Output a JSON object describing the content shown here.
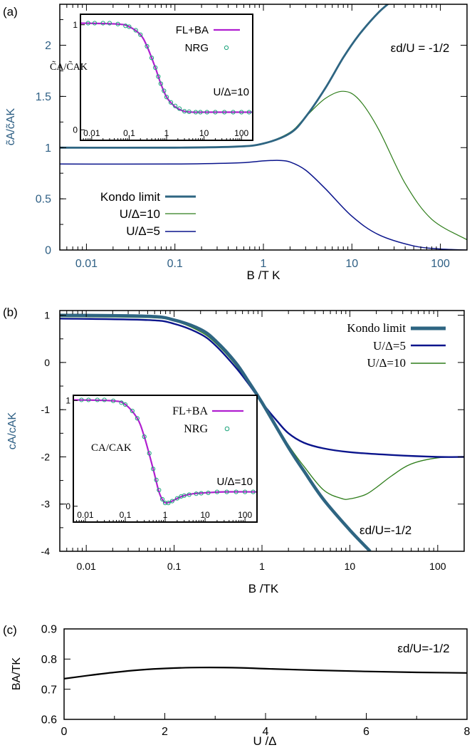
{
  "colors": {
    "kondo": "#2e6582",
    "u10": "#2e7d1a",
    "u5": "#0a148c",
    "flba": "#b01fd0",
    "nrg": "#1aa37a",
    "axis_text_a": "#2e5f84",
    "axis_text": "#000000"
  },
  "panels": {
    "a": {
      "label": "(a)",
      "ylabel": "c̃A/c̃AK",
      "xlabel": "B /T K",
      "annotation": "εd/U = -1/2",
      "inset": {
        "ylabel": "C̃A/C̃AK",
        "note": "U/Δ=10"
      }
    },
    "b": {
      "label": "(b)",
      "ylabel": "cA/cAK",
      "xlabel": "B /TK",
      "annotation": "εd/U=-1/2",
      "inset": {
        "ylabel": "CA/CAK",
        "note": "U/Δ=10"
      }
    },
    "c": {
      "label": "(c)",
      "ylabel": "BA/TK",
      "xlabel": "U /Δ",
      "annotation": "εd/U=-1/2"
    }
  },
  "chart_data": [
    {
      "panel": "a",
      "type": "line",
      "xscale": "log",
      "xlim": [
        0.005,
        200
      ],
      "ylim": [
        0,
        2.4
      ],
      "xticklabels": [
        "0.01",
        "0.1",
        "1",
        "10",
        "100"
      ],
      "yticklabels": [
        "0",
        "0.5",
        "1",
        "1.5",
        "2"
      ],
      "legend_position": "bottom-left",
      "series": [
        {
          "name": "Kondo limit",
          "key": "kondo",
          "x": [
            0.005,
            0.1,
            0.5,
            1,
            2,
            3,
            5,
            8,
            12,
            20,
            30
          ],
          "y": [
            1.0,
            1.0,
            1.01,
            1.04,
            1.14,
            1.3,
            1.58,
            1.88,
            2.1,
            2.32,
            2.45
          ]
        },
        {
          "name": "U/Δ=10",
          "key": "u10",
          "x": [
            0.005,
            0.1,
            0.5,
            1,
            2,
            3,
            5,
            8,
            12,
            20,
            40,
            80,
            200
          ],
          "y": [
            1.0,
            1.0,
            1.01,
            1.04,
            1.15,
            1.3,
            1.48,
            1.55,
            1.47,
            1.18,
            0.65,
            0.3,
            0.1
          ]
        },
        {
          "name": "U/Δ=5",
          "key": "u5",
          "x": [
            0.005,
            0.1,
            0.5,
            1,
            1.5,
            2,
            3,
            5,
            10,
            20,
            50,
            100,
            200
          ],
          "y": [
            0.84,
            0.84,
            0.85,
            0.87,
            0.875,
            0.86,
            0.78,
            0.6,
            0.33,
            0.15,
            0.04,
            0.01,
            0.0
          ]
        }
      ]
    },
    {
      "panel": "a-inset",
      "type": "line",
      "xscale": "log",
      "xlim": [
        0.005,
        200
      ],
      "ylim": [
        -0.1,
        1.1
      ],
      "xticklabels": [
        "0.01",
        "0.1",
        "1",
        "10",
        "100"
      ],
      "yticklabels": [
        "0",
        "1"
      ],
      "series": [
        {
          "name": "FL+BA",
          "key": "flba",
          "x": [
            0.005,
            0.05,
            0.1,
            0.2,
            0.3,
            0.5,
            0.7,
            1,
            1.5,
            2,
            3,
            5,
            10,
            200
          ],
          "y": [
            1.0,
            0.99,
            0.96,
            0.87,
            0.74,
            0.5,
            0.32,
            0.17,
            0.08,
            0.04,
            0.01,
            0.0,
            0.0,
            0.0
          ]
        },
        {
          "name": "NRG",
          "key": "nrg",
          "x": [
            0.008,
            0.012,
            0.02,
            0.03,
            0.05,
            0.08,
            0.1,
            0.15,
            0.2,
            0.3,
            0.4,
            0.5,
            0.6,
            0.7,
            0.85,
            1,
            1.3,
            1.7,
            2.2,
            3,
            4,
            6,
            8,
            12,
            20,
            35,
            60,
            100,
            160
          ],
          "y": [
            1.0,
            1.0,
            1.0,
            1.0,
            0.99,
            0.97,
            0.96,
            0.92,
            0.87,
            0.74,
            0.61,
            0.5,
            0.4,
            0.32,
            0.24,
            0.17,
            0.11,
            0.07,
            0.04,
            0.01,
            0.005,
            0.0,
            0.0,
            0.0,
            0.0,
            0.0,
            0.0,
            0.0,
            0.0
          ]
        }
      ]
    },
    {
      "panel": "b",
      "type": "line",
      "xscale": "log",
      "xlim": [
        0.005,
        200
      ],
      "ylim": [
        -4,
        1.1
      ],
      "xticklabels": [
        "0.01",
        "0.1",
        "1",
        "10",
        "100"
      ],
      "yticklabels": [
        "-4",
        "-3",
        "-2",
        "-1",
        "0",
        "1"
      ],
      "legend_position": "top-right",
      "series": [
        {
          "name": "Kondo limit",
          "key": "kondo",
          "x": [
            0.005,
            0.05,
            0.1,
            0.2,
            0.3,
            0.5,
            0.7,
            1,
            2,
            3,
            5,
            10,
            17
          ],
          "y": [
            1.0,
            0.98,
            0.9,
            0.7,
            0.45,
            0.0,
            -0.4,
            -0.85,
            -1.8,
            -2.3,
            -2.9,
            -3.55,
            -4.0
          ]
        },
        {
          "name": "U/Δ=5",
          "key": "u5",
          "x": [
            0.005,
            0.05,
            0.1,
            0.2,
            0.3,
            0.5,
            0.7,
            1,
            1.5,
            2,
            3,
            5,
            10,
            30,
            100,
            200
          ],
          "y": [
            0.93,
            0.9,
            0.82,
            0.6,
            0.35,
            -0.1,
            -0.45,
            -0.85,
            -1.25,
            -1.5,
            -1.7,
            -1.82,
            -1.9,
            -1.96,
            -2.0,
            -2.0
          ]
        },
        {
          "name": "U/Δ=10",
          "key": "u10",
          "x": [
            0.005,
            0.05,
            0.1,
            0.2,
            0.3,
            0.5,
            0.7,
            1,
            2,
            3,
            5,
            8,
            10,
            15,
            20,
            30,
            50,
            100,
            200
          ],
          "y": [
            0.97,
            0.95,
            0.88,
            0.65,
            0.4,
            -0.05,
            -0.45,
            -0.85,
            -1.75,
            -2.2,
            -2.7,
            -2.88,
            -2.89,
            -2.8,
            -2.65,
            -2.4,
            -2.15,
            -2.02,
            -2.0
          ]
        }
      ]
    },
    {
      "panel": "b-inset",
      "type": "line",
      "xscale": "log",
      "xlim": [
        0.005,
        200
      ],
      "ylim": [
        -0.15,
        1.05
      ],
      "xticklabels": [
        "0.01",
        "0.1",
        "1",
        "10",
        "100"
      ],
      "yticklabels": [
        "0",
        "1"
      ],
      "series": [
        {
          "name": "FL+BA",
          "key": "flba",
          "x": [
            0.005,
            0.05,
            0.1,
            0.2,
            0.3,
            0.5,
            0.7,
            0.9,
            1.1,
            1.5,
            2,
            3,
            5,
            10,
            30,
            200
          ],
          "y": [
            1.0,
            0.99,
            0.95,
            0.8,
            0.6,
            0.25,
            0.0,
            -0.1,
            -0.12,
            -0.1,
            -0.07,
            -0.04,
            -0.02,
            -0.01,
            0.0,
            0.0
          ]
        },
        {
          "name": "NRG",
          "key": "nrg",
          "x": [
            0.008,
            0.012,
            0.02,
            0.03,
            0.05,
            0.08,
            0.1,
            0.15,
            0.2,
            0.3,
            0.4,
            0.5,
            0.6,
            0.7,
            0.85,
            1,
            1.2,
            1.5,
            2,
            2.5,
            3,
            4,
            6,
            8,
            12,
            20,
            35,
            60,
            100,
            160
          ],
          "y": [
            1.0,
            1.0,
            1.0,
            1.0,
            0.99,
            0.97,
            0.95,
            0.88,
            0.8,
            0.6,
            0.42,
            0.25,
            0.13,
            0.02,
            -0.08,
            -0.12,
            -0.12,
            -0.1,
            -0.07,
            -0.05,
            -0.04,
            -0.03,
            -0.02,
            -0.015,
            -0.01,
            0.0,
            0.0,
            0.0,
            0.0,
            0.0
          ]
        }
      ]
    },
    {
      "panel": "c",
      "type": "line",
      "xscale": "linear",
      "xlim": [
        0,
        8
      ],
      "ylim": [
        0.6,
        0.9
      ],
      "xticklabels": [
        "0",
        "2",
        "4",
        "6",
        "8"
      ],
      "yticklabels": [
        "0.6",
        "0.7",
        "0.8",
        "0.9"
      ],
      "series": [
        {
          "key": "c",
          "x": [
            0,
            0.5,
            1,
            1.5,
            2,
            2.7,
            3.5,
            4,
            5,
            6,
            7,
            8
          ],
          "y": [
            0.735,
            0.746,
            0.756,
            0.764,
            0.769,
            0.772,
            0.771,
            0.768,
            0.763,
            0.759,
            0.756,
            0.754
          ]
        }
      ]
    }
  ]
}
